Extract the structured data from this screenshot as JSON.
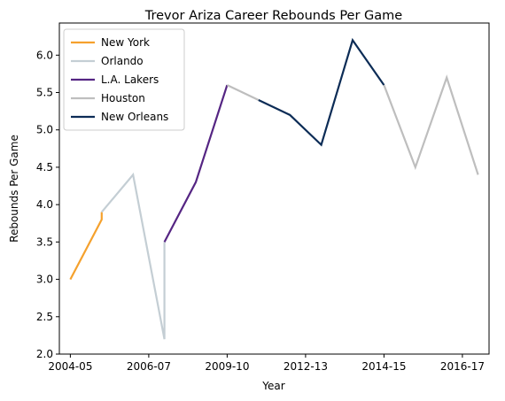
{
  "chart_data": {
    "type": "line",
    "title": "Trevor Ariza Career Rebounds Per Game",
    "xlabel": "Year",
    "ylabel": "Rebounds Per Game",
    "x_ticks": [
      "2004-05",
      "2006-07",
      "2009-10",
      "2012-13",
      "2014-15",
      "2016-17"
    ],
    "y_ticks": [
      "2.0",
      "2.5",
      "3.0",
      "3.5",
      "4.0",
      "4.5",
      "5.0",
      "5.5",
      "6.0"
    ],
    "xlim": [
      -0.35,
      13.35
    ],
    "ylim": [
      2.0,
      6.43
    ],
    "grid": false,
    "legend_position": "upper-left",
    "series": [
      {
        "name": "New York",
        "color": "#f5a12d",
        "x": [
          0,
          1,
          1
        ],
        "y": [
          3.0,
          3.8,
          3.9
        ]
      },
      {
        "name": "Orlando",
        "color": "#c4ced4",
        "x": [
          1,
          2,
          3,
          3
        ],
        "y": [
          3.9,
          4.4,
          2.2,
          3.5
        ]
      },
      {
        "name": "L.A. Lakers",
        "color": "#552583",
        "x": [
          3,
          4,
          5
        ],
        "y": [
          3.5,
          4.3,
          5.6
        ]
      },
      {
        "name": "Houston",
        "color": "#bebebe",
        "x": [
          5,
          6
        ],
        "y": [
          5.6,
          5.4
        ]
      },
      {
        "name": "New Orleans",
        "color": "#0c2c56",
        "x": [
          6,
          7,
          8,
          9,
          10
        ],
        "y": [
          5.4,
          5.2,
          4.8,
          6.2,
          5.6
        ]
      },
      {
        "name": "",
        "color": "#bebebe",
        "x": [
          10,
          11,
          12,
          13
        ],
        "y": [
          5.6,
          4.5,
          5.7,
          4.4
        ]
      }
    ]
  }
}
